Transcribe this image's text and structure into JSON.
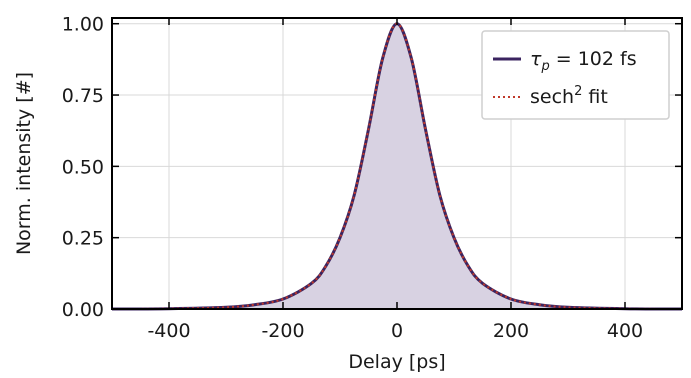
{
  "chart_data": {
    "type": "line",
    "xlabel": "Delay [ps]",
    "ylabel": "Norm. intensity [#]",
    "xlim": [
      -500,
      500
    ],
    "ylim": [
      0,
      1.02
    ],
    "xticks": [
      -400,
      -200,
      0,
      200,
      400
    ],
    "xtick_labels": [
      "-400",
      "-200",
      "0",
      "200",
      "400"
    ],
    "yticks": [
      0,
      0.25,
      0.5,
      0.75,
      1.0
    ],
    "ytick_labels": [
      "0.00",
      "0.25",
      "0.50",
      "0.75",
      "1.00"
    ],
    "grid": true,
    "legend_position": "top-right",
    "series": [
      {
        "legend_symbol": "τ",
        "legend_subscript": "p",
        "legend_suffix": " = 102 fs",
        "style": "solid",
        "color": "#3b2460",
        "fill": "#d8d2e2",
        "x": [
          -500,
          -400,
          -300,
          -250,
          -200,
          -150,
          -125,
          -100,
          -75,
          -50,
          -25,
          0,
          25,
          50,
          75,
          100,
          125,
          150,
          200,
          250,
          300,
          400,
          500
        ],
        "y": [
          0.0,
          0.001,
          0.006,
          0.015,
          0.035,
          0.09,
          0.15,
          0.25,
          0.4,
          0.63,
          0.88,
          1.0,
          0.88,
          0.63,
          0.4,
          0.25,
          0.15,
          0.09,
          0.035,
          0.015,
          0.006,
          0.001,
          0.0
        ]
      },
      {
        "legend_label": "sech",
        "legend_superscript": "2",
        "legend_suffix": " fit",
        "style": "dotted",
        "color": "#c0392b",
        "x": [
          -500,
          -400,
          -300,
          -250,
          -200,
          -150,
          -125,
          -100,
          -75,
          -50,
          -25,
          0,
          25,
          50,
          75,
          100,
          125,
          150,
          200,
          250,
          300,
          400,
          500
        ],
        "y": [
          0.0,
          0.001,
          0.006,
          0.015,
          0.035,
          0.09,
          0.15,
          0.25,
          0.4,
          0.63,
          0.88,
          1.0,
          0.88,
          0.63,
          0.4,
          0.25,
          0.15,
          0.09,
          0.035,
          0.015,
          0.006,
          0.001,
          0.0
        ]
      }
    ]
  }
}
